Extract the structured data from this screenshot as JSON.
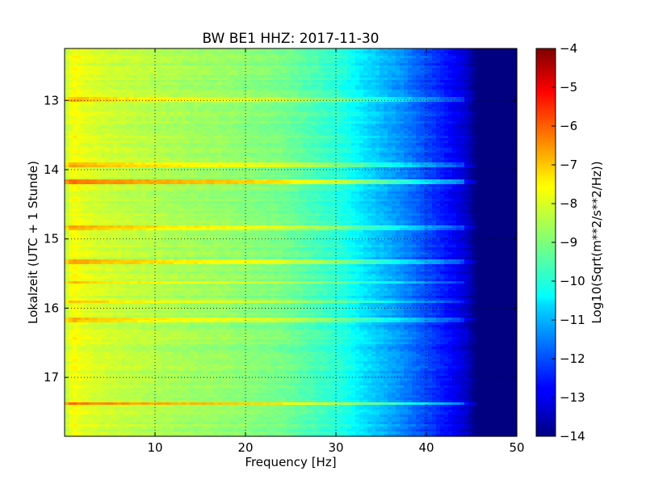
{
  "chart_data": {
    "type": "heatmap",
    "title": "BW BE1 HHZ: 2017-11-30",
    "xlabel": "Frequency [Hz]",
    "ylabel": "Lokalzeit (UTC + 1 Stunde)",
    "colorbar_label": "Log10(Sqrt(m**2/s**2/Hz))",
    "colormap": "jet",
    "grid": true,
    "x_range": [
      0,
      50
    ],
    "y_range": [
      12.25,
      17.85
    ],
    "y_inverted": true,
    "color_range": [
      -14,
      -4
    ],
    "x_ticks": [
      10,
      20,
      30,
      40,
      50
    ],
    "y_ticks": [
      13,
      14,
      15,
      16,
      17
    ],
    "color_ticks": [
      -4,
      -5,
      -6,
      -7,
      -8,
      -9,
      -10,
      -11,
      -12,
      -13,
      -14
    ],
    "spectrum_profile": {
      "frequency_hz": [
        0,
        0.5,
        1,
        2,
        4,
        8,
        12,
        18,
        24,
        28,
        31,
        33,
        35,
        37,
        39,
        41,
        43,
        44.5,
        45.5,
        50
      ],
      "log10_amplitude": [
        -8.6,
        -8.0,
        -7.8,
        -8.0,
        -8.2,
        -8.4,
        -8.6,
        -8.8,
        -9.1,
        -9.6,
        -10.0,
        -10.5,
        -10.9,
        -11.3,
        -11.8,
        -12.3,
        -12.8,
        -13.3,
        -14,
        -14
      ]
    },
    "bright_bands": [
      {
        "time": 12.99,
        "boost": 0.9
      },
      {
        "time": 13.94,
        "boost": 1.0
      },
      {
        "time": 14.18,
        "boost": 1.6
      },
      {
        "time": 14.84,
        "boost": 1.0
      },
      {
        "time": 15.34,
        "boost": 1.0
      },
      {
        "time": 15.63,
        "boost": 0.9
      },
      {
        "time": 15.91,
        "boost": 0.9
      },
      {
        "time": 16.18,
        "boost": 0.8
      },
      {
        "time": 17.38,
        "boost": 1.4
      }
    ]
  }
}
